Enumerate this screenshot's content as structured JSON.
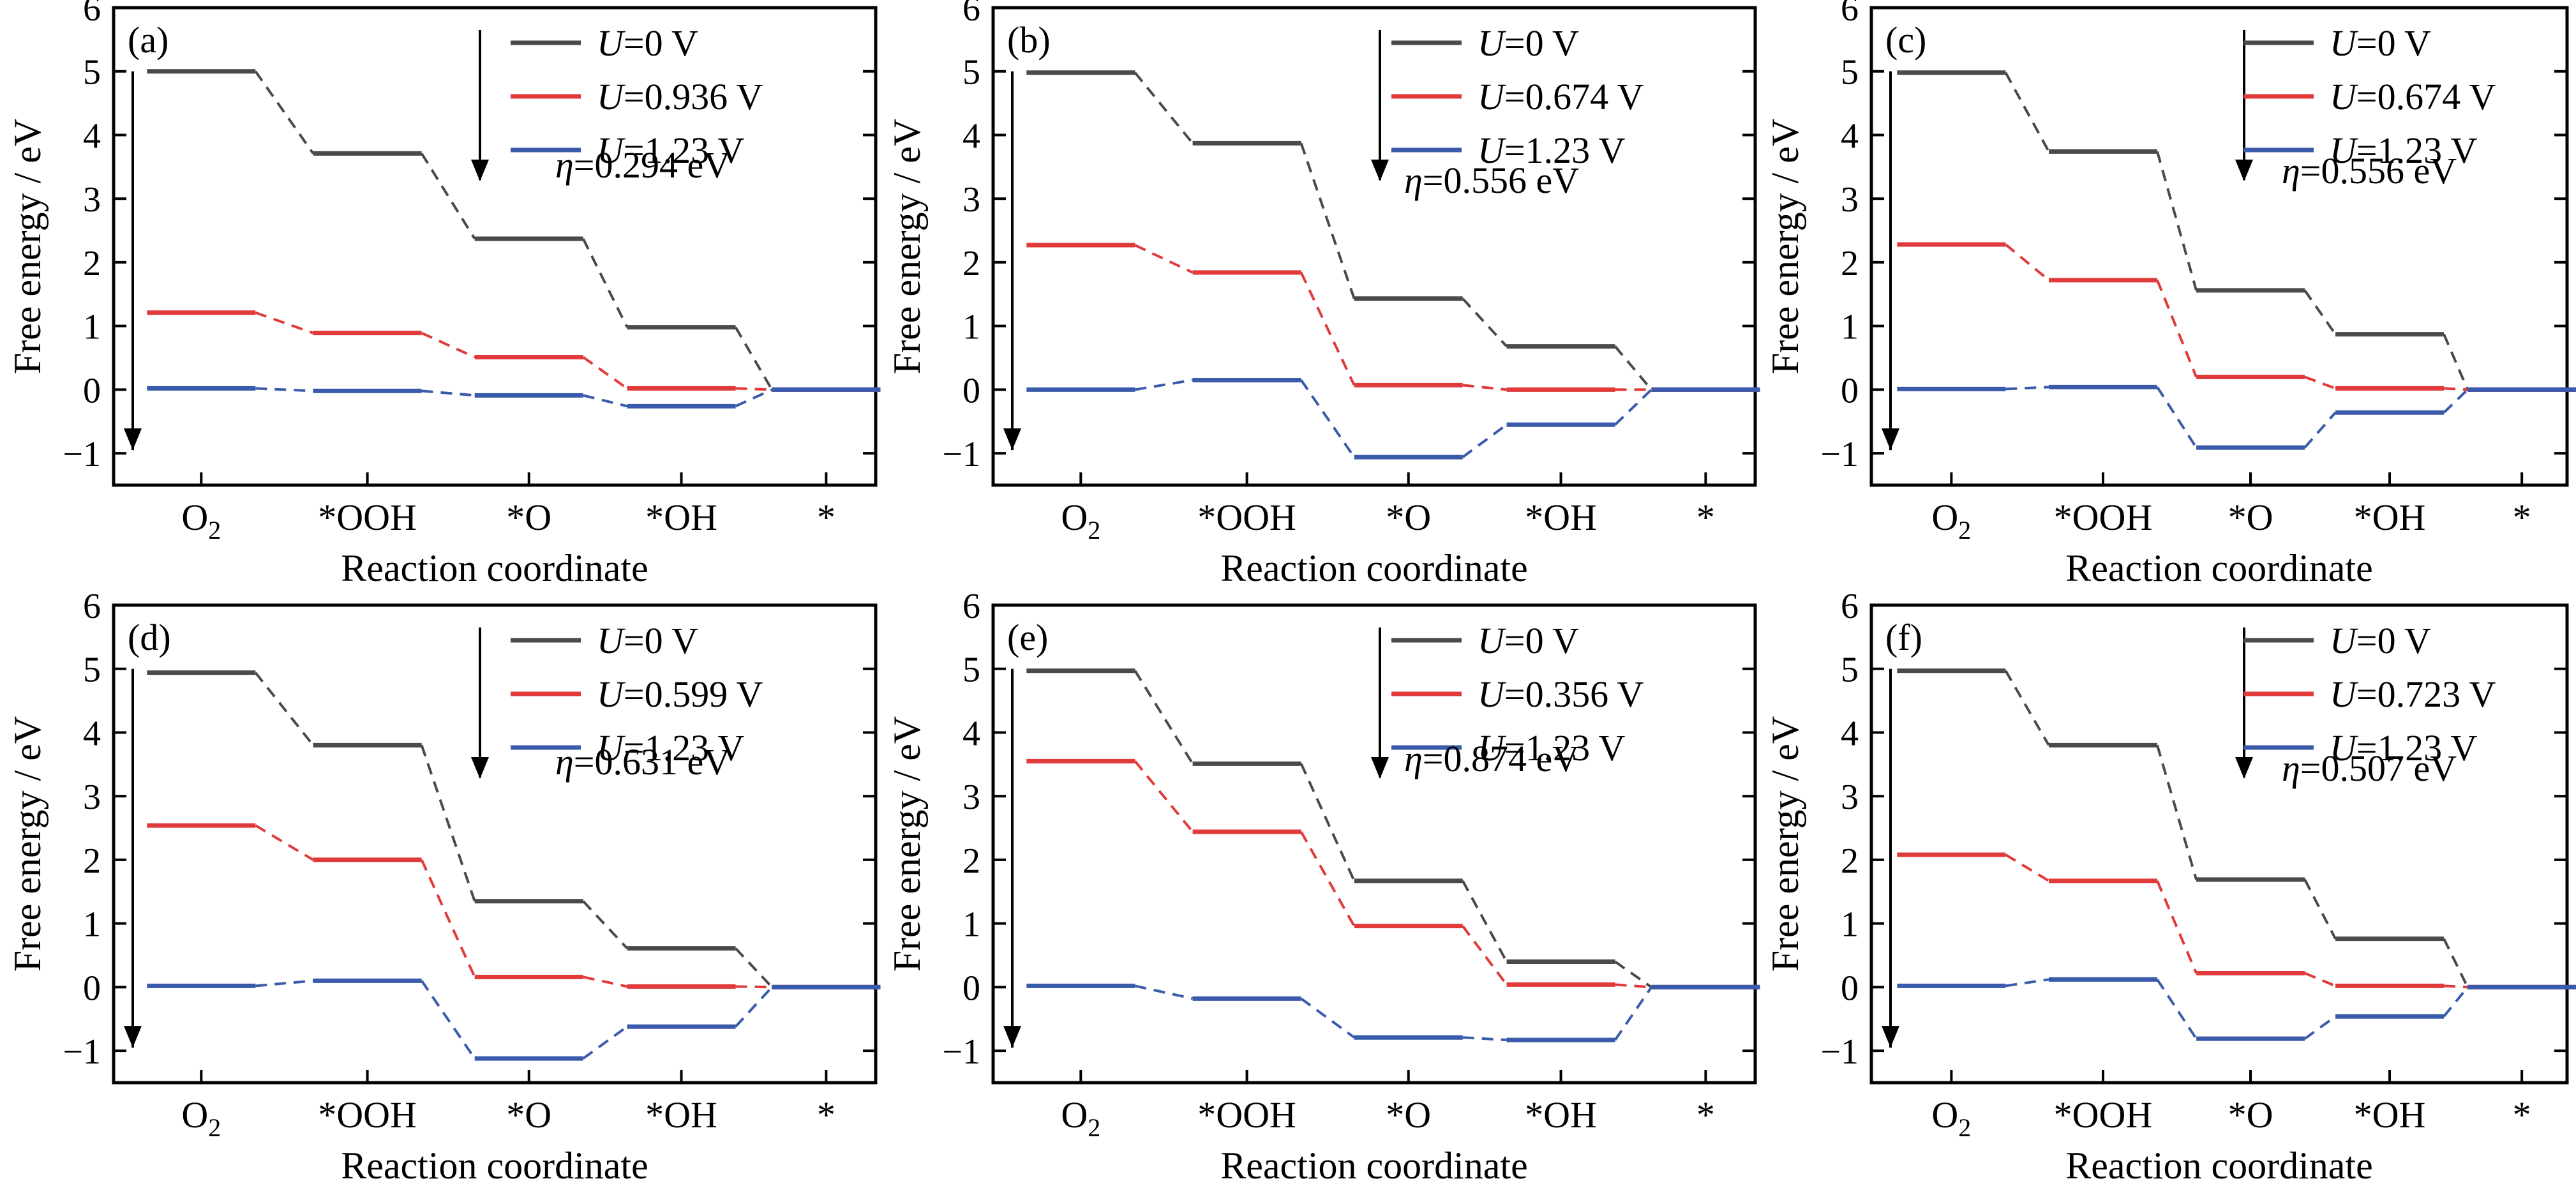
{
  "axis_common": {
    "ylabel": "Free energy / eV",
    "xlabel": "Reaction coordinate",
    "y_ticks": [
      "−1",
      "0",
      "1",
      "2",
      "3",
      "4",
      "5",
      "6"
    ],
    "x_ticks": [
      "O",
      "*OOH",
      "*O",
      "*OH",
      "*"
    ],
    "x_tick_o2_subscript": "2",
    "u_symbol": "U",
    "eta_symbol": "η"
  },
  "series_colors": {
    "U0": "#4a4a4a",
    "Ueq": "#e03a3a",
    "U123": "#3a5bab"
  },
  "chart_data": [
    {
      "type": "line",
      "label": "(a)",
      "categories": [
        "O2",
        "*OOH",
        "*O",
        "*OH",
        "*"
      ],
      "ylim": [
        -1.5,
        6
      ],
      "xlabel": "Reaction coordinate",
      "ylabel": "Free energy / eV",
      "legend_position": "top-right",
      "series": [
        {
          "name": "=0 V",
          "values": [
            5.0,
            3.71,
            2.37,
            0.98,
            0.0
          ]
        },
        {
          "name": "=0.936 V",
          "values": [
            1.21,
            0.89,
            0.51,
            0.02,
            0.0
          ]
        },
        {
          "name": "=1.23 V",
          "values": [
            0.02,
            -0.02,
            -0.09,
            -0.26,
            0.0
          ]
        }
      ],
      "eta_text": "=0.294 eV"
    },
    {
      "type": "line",
      "label": "(b)",
      "categories": [
        "O2",
        "*OOH",
        "*O",
        "*OH",
        "*"
      ],
      "ylim": [
        -1.5,
        6
      ],
      "xlabel": "Reaction coordinate",
      "ylabel": "Free energy / eV",
      "legend_position": "top-right",
      "series": [
        {
          "name": "=0 V",
          "values": [
            4.98,
            3.87,
            1.43,
            0.68,
            0.0
          ]
        },
        {
          "name": "=0.674 V",
          "values": [
            2.27,
            1.84,
            0.07,
            0.0,
            0.0
          ]
        },
        {
          "name": "=1.23 V",
          "values": [
            0.0,
            0.15,
            -1.06,
            -0.55,
            0.0
          ]
        }
      ],
      "eta_text": "=0.556 eV"
    },
    {
      "type": "line",
      "label": "(c)",
      "categories": [
        "O2",
        "*OOH",
        "*O",
        "*OH",
        "*"
      ],
      "ylim": [
        -1.5,
        6
      ],
      "xlabel": "Reaction coordinate",
      "ylabel": "Free energy / eV",
      "legend_position": "top-right",
      "series": [
        {
          "name": "=0 V",
          "values": [
            4.98,
            3.74,
            1.56,
            0.87,
            0.0
          ]
        },
        {
          "name": "=0.674 V",
          "values": [
            2.28,
            1.72,
            0.2,
            0.02,
            0.0
          ]
        },
        {
          "name": "=1.23 V",
          "values": [
            0.01,
            0.04,
            -0.91,
            -0.36,
            0.0
          ]
        }
      ],
      "eta_text": "=0.556 eV"
    },
    {
      "type": "line",
      "label": "(d)",
      "categories": [
        "O2",
        "*OOH",
        "*O",
        "*OH",
        "*"
      ],
      "ylim": [
        -1.5,
        6
      ],
      "xlabel": "Reaction coordinate",
      "ylabel": "Free energy / eV",
      "legend_position": "top-right",
      "series": [
        {
          "name": "=0 V",
          "values": [
            4.94,
            3.8,
            1.35,
            0.61,
            0.0
          ]
        },
        {
          "name": "=0.599 V",
          "values": [
            2.54,
            2.0,
            0.16,
            0.01,
            0.0
          ]
        },
        {
          "name": "=1.23 V",
          "values": [
            0.02,
            0.1,
            -1.12,
            -0.62,
            0.0
          ]
        }
      ],
      "eta_text": "=0.631 eV"
    },
    {
      "type": "line",
      "label": "(e)",
      "categories": [
        "O2",
        "*OOH",
        "*O",
        "*OH",
        "*"
      ],
      "ylim": [
        -1.5,
        6
      ],
      "xlabel": "Reaction coordinate",
      "ylabel": "Free energy / eV",
      "legend_position": "top-right",
      "series": [
        {
          "name": "=0 V",
          "values": [
            4.97,
            3.51,
            1.67,
            0.4,
            0.0
          ]
        },
        {
          "name": "=0.356 V",
          "values": [
            3.55,
            2.44,
            0.96,
            0.04,
            0.0
          ]
        },
        {
          "name": "=1.23 V",
          "values": [
            0.02,
            -0.18,
            -0.79,
            -0.83,
            0.0
          ]
        }
      ],
      "eta_text": "=0.874 eV"
    },
    {
      "type": "line",
      "label": "(f)",
      "categories": [
        "O2",
        "*OOH",
        "*O",
        "*OH",
        "*"
      ],
      "ylim": [
        -1.5,
        6
      ],
      "xlabel": "Reaction coordinate",
      "ylabel": "Free energy / eV",
      "legend_position": "top-right",
      "series": [
        {
          "name": "=0 V",
          "values": [
            4.97,
            3.8,
            1.69,
            0.76,
            0.0
          ]
        },
        {
          "name": "=0.723 V",
          "values": [
            2.08,
            1.67,
            0.22,
            0.02,
            0.0
          ]
        },
        {
          "name": "=1.23 V",
          "values": [
            0.02,
            0.12,
            -0.81,
            -0.46,
            0.0
          ]
        }
      ],
      "eta_text": "=0.507 eV"
    }
  ]
}
